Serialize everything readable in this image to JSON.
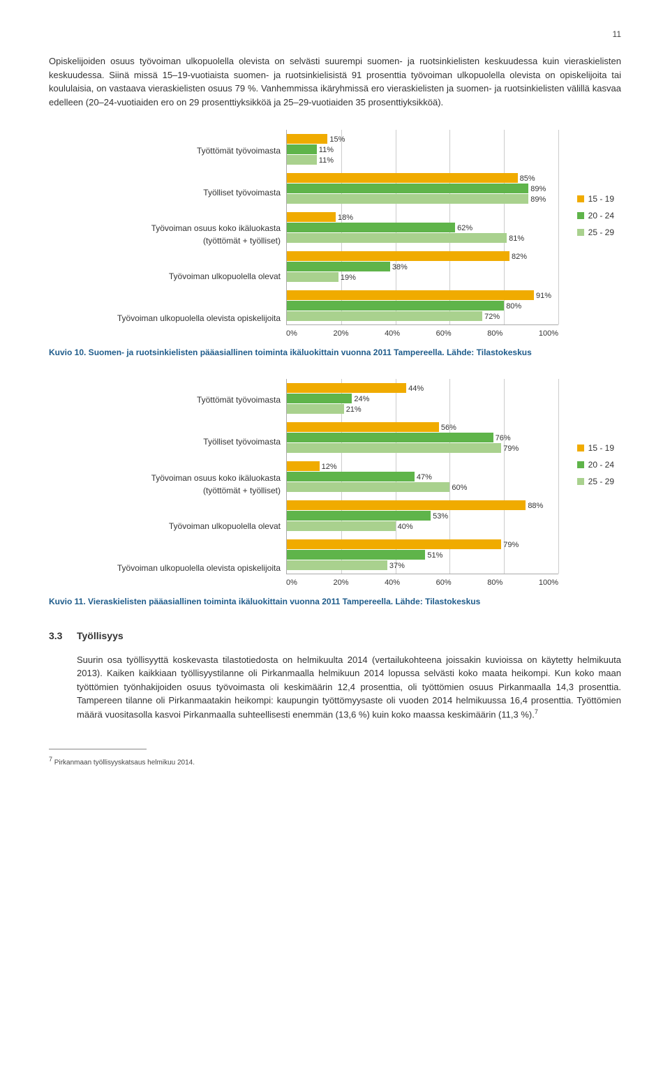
{
  "page_number": "11",
  "para1": "Opiskelijoiden osuus työvoiman ulkopuolella olevista on selvästi suurempi suomen- ja ruotsinkielisten keskuudessa kuin vieraskielisten keskuudessa. Siinä missä 15–19-vuotiaista suomen- ja ruotsinkielisistä 91 prosenttia työvoiman ulkopuolella olevista on opiskelijoita tai koululaisia, on vastaava vieraskielisten osuus 79 %. Vanhemmissa ikäryhmissä ero vieraskielisten ja suomen- ja ruotsinkielisten välillä kasvaa edelleen (20–24-vuotiaiden ero on 29 prosenttiyksikköä ja 25–29-vuotiaiden 35 prosenttiyksikköä).",
  "chart_common": {
    "categories": [
      "Työttömät työvoimasta",
      "Työlliset työvoimasta",
      "Työvoiman osuus koko ikäluokasta (työttömät + työlliset)",
      "Työvoiman ulkopuolella olevat",
      "Työvoiman ulkopuolella olevista opiskelijoita"
    ],
    "series_labels": [
      "15 - 19",
      "20 - 24",
      "25 - 29"
    ],
    "series_colors": [
      "#f0ab00",
      "#5fb44a",
      "#a9d18e"
    ],
    "x_ticks": [
      "0%",
      "20%",
      "40%",
      "60%",
      "80%",
      "100%"
    ],
    "x_tick_positions": [
      0,
      20,
      40,
      60,
      80,
      100
    ],
    "grid_color": "#cccccc",
    "axis_color": "#aaaaaa",
    "label_fontsize": 11,
    "category_fontsize": 12
  },
  "chart1": {
    "type": "horizontal_grouped_bar",
    "data": [
      [
        15,
        11,
        11
      ],
      [
        85,
        89,
        89
      ],
      [
        18,
        62,
        81
      ],
      [
        82,
        38,
        19
      ],
      [
        91,
        80,
        72
      ]
    ]
  },
  "caption1": "Kuvio 10. Suomen- ja ruotsinkielisten pääasiallinen toiminta ikäluokittain vuonna 2011 Tampereella. Lähde: Tilastokeskus",
  "chart2": {
    "type": "horizontal_grouped_bar",
    "data": [
      [
        44,
        24,
        21
      ],
      [
        56,
        76,
        79
      ],
      [
        12,
        47,
        60
      ],
      [
        88,
        53,
        40
      ],
      [
        79,
        51,
        37
      ]
    ]
  },
  "caption2": "Kuvio 11. Vieraskielisten pääasiallinen toiminta ikäluokittain vuonna 2011 Tampereella. Lähde: Tilastokeskus",
  "section": {
    "num": "3.3",
    "title": "Työllisyys"
  },
  "para2": "Suurin osa työllisyyttä koskevasta tilastotiedosta on helmikuulta 2014 (vertailukohteena joissakin kuvioissa on käytetty helmikuuta 2013). Kaiken kaikkiaan työllisyystilanne oli Pirkanmaalla helmikuun 2014 lopussa selvästi koko maata heikompi. Kun koko maan työttömien työnhakijoiden osuus työvoimasta oli keskimäärin 12,4 prosenttia, oli työttömien osuus Pirkanmaalla 14,3 prosenttia. Tampereen tilanne oli Pirkanmaatakin heikompi: kaupungin työttömyysaste oli vuoden 2014 helmikuussa 16,4 prosenttia. Työttömien määrä vuositasolla kasvoi Pirkanmaalla suhteellisesti enemmän (13,6 %) kuin koko maassa keskimäärin (11,3 %).",
  "footnote_marker": "7",
  "footnote": "Pirkanmaan työllisyyskatsaus helmikuu 2014."
}
